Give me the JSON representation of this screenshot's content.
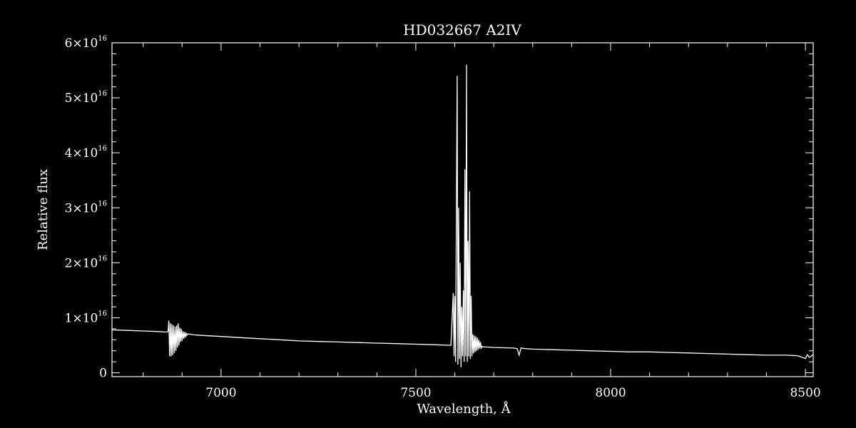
{
  "chart_data": {
    "type": "line",
    "title": "HD032667   A2IV",
    "xlabel": "Wavelength, Å",
    "ylabel": "Relative flux",
    "xlim": [
      6720,
      8520
    ],
    "ylim": [
      -700000000000000.0,
      6e+16
    ],
    "grid": false,
    "x_ticks": [
      {
        "value": 7000,
        "label": "7000"
      },
      {
        "value": 7500,
        "label": "7500"
      },
      {
        "value": 8000,
        "label": "8000"
      },
      {
        "value": 8500,
        "label": "8500"
      }
    ],
    "x_minor_step": 100,
    "y_ticks": [
      {
        "value": 0,
        "label": "0",
        "exp": ""
      },
      {
        "value": 1e+16,
        "label": "1×10",
        "exp": "16"
      },
      {
        "value": 2e+16,
        "label": "2×10",
        "exp": "16"
      },
      {
        "value": 3e+16,
        "label": "3×10",
        "exp": "16"
      },
      {
        "value": 4e+16,
        "label": "4×10",
        "exp": "16"
      },
      {
        "value": 5e+16,
        "label": "5×10",
        "exp": "16"
      },
      {
        "value": 6e+16,
        "label": "6×10",
        "exp": "16"
      }
    ],
    "y_minor_step": 2000000000000000.0,
    "series": [
      {
        "color": "#ffffff",
        "x": [
          6720,
          6760,
          6800,
          6840,
          6860,
          6864,
          6866,
          6868,
          6870,
          6872,
          6874,
          6876,
          6878,
          6880,
          6882,
          6884,
          6886,
          6888,
          6890,
          6892,
          6894,
          6896,
          6898,
          6900,
          6902,
          6904,
          6906,
          6908,
          6910,
          6912,
          6915,
          6920,
          6930,
          6950,
          7000,
          7050,
          7100,
          7150,
          7200,
          7250,
          7300,
          7350,
          7400,
          7450,
          7500,
          7550,
          7590,
          7596,
          7598,
          7600,
          7602,
          7604,
          7606,
          7608,
          7610,
          7612,
          7614,
          7616,
          7618,
          7620,
          7622,
          7624,
          7626,
          7628,
          7630,
          7632,
          7634,
          7636,
          7638,
          7640,
          7642,
          7644,
          7646,
          7648,
          7650,
          7652,
          7654,
          7656,
          7658,
          7660,
          7662,
          7664,
          7666,
          7668,
          7670,
          7675,
          7680,
          7700,
          7750,
          7760,
          7765,
          7770,
          7780,
          7800,
          7850,
          7900,
          7950,
          8000,
          8050,
          8100,
          8150,
          8200,
          8250,
          8300,
          8350,
          8400,
          8450,
          8480,
          8500,
          8505,
          8510,
          8520
        ],
        "y": [
          7800000000000000.0,
          7700000000000000.0,
          7600000000000000.0,
          7500000000000000.0,
          7400000000000000.0,
          7500000000000000.0,
          9500000000000000.0,
          3000000000000000.0,
          9000000000000000.0,
          3000000000000000.0,
          8800000000000000.0,
          3200000000000000.0,
          8600000000000000.0,
          3600000000000000.0,
          8400000000000000.0,
          4000000000000000.0,
          8600000000000000.0,
          4600000000000000.0,
          9000000000000000.0,
          5000000000000000.0,
          8200000000000000.0,
          5600000000000000.0,
          8000000000000000.0,
          5800000000000000.0,
          7600000000000000.0,
          6200000000000000.0,
          7400000000000000.0,
          6400000000000000.0,
          7200000000000000.0,
          6800000000000000.0,
          7100000000000000.0,
          7000000000000000.0,
          6900000000000000.0,
          6800000000000000.0,
          6600000000000000.0,
          6400000000000000.0,
          6200000000000000.0,
          6000000000000000.0,
          5800000000000000.0,
          5700000000000000.0,
          5600000000000000.0,
          5500000000000000.0,
          5400000000000000.0,
          5300000000000000.0,
          5200000000000000.0,
          5100000000000000.0,
          5000000000000000.0,
          1.45e+16,
          3000000000000000.0,
          1.4e+16,
          2000000000000000.0,
          3e+16,
          5.4e+16,
          1500000000000000.0,
          3e+16,
          2500000000000000.0,
          2e+16,
          1000000000000000.0,
          1.2e+16,
          3000000000000000.0,
          1.5e+16,
          2000000000000000.0,
          3.7e+16,
          3000000000000000.0,
          5.6e+16,
          2000000000000000.0,
          2.4e+16,
          3000000000000000.0,
          3.3e+16,
          2500000000000000.0,
          1.4e+16,
          3000000000000000.0,
          7000000000000000.0,
          3500000000000000.0,
          6800000000000000.0,
          3800000000000000.0,
          6600000000000000.0,
          4000000000000000.0,
          6400000000000000.0,
          4200000000000000.0,
          6000000000000000.0,
          4400000000000000.0,
          5600000000000000.0,
          4500000000000000.0,
          4800000000000000.0,
          4700000000000000.0,
          4700000000000000.0,
          4600000000000000.0,
          4500000000000000.0,
          4400000000000000.0,
          3200000000000000.0,
          4500000000000000.0,
          4400000000000000.0,
          4300000000000000.0,
          4200000000000000.0,
          4100000000000000.0,
          4000000000000000.0,
          3900000000000000.0,
          3800000000000000.0,
          3800000000000000.0,
          3700000000000000.0,
          3600000000000000.0,
          3500000000000000.0,
          3400000000000000.0,
          3300000000000000.0,
          3200000000000000.0,
          3200000000000000.0,
          3100000000000000.0,
          2600000000000000.0,
          3300000000000000.0,
          2800000000000000.0,
          3300000000000000.0
        ]
      }
    ]
  }
}
